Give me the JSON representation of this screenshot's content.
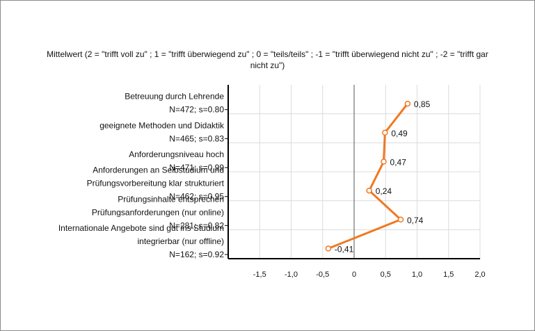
{
  "chart_data": {
    "type": "line",
    "orientation": "horizontal",
    "title_line1": "Mittelwert (2 = \"trifft voll zu\" ; 1 = \"trifft überwiegend zu\" ; 0 = \"teils/teils\" ; -1 = \"trifft überwiegend nicht zu\" ; -2 = \"trifft gar",
    "title_line2": "nicht zu\")",
    "categories": [
      {
        "lines": [
          "Betreuung durch Lehrende"
        ],
        "stats": "N=472; s=0.80"
      },
      {
        "lines": [
          "geeignete Methoden und Didaktik"
        ],
        "stats": "N=465; s=0.83"
      },
      {
        "lines": [
          "Anforderungsniveau hoch"
        ],
        "stats": "N=471; s=0.99"
      },
      {
        "lines": [
          "Anforderungen an Selbstudium und",
          "Prüfungsvorbereitung klar strukturiert"
        ],
        "stats": "N=462; s=0.95"
      },
      {
        "lines": [
          "Prüfungsinhalte entsprechen",
          "Prüfungsanforderungen (nur online)"
        ],
        "stats": "N=281; s=0.82"
      },
      {
        "lines": [
          "Internationale Angebote sind gut ins Studium",
          "integrierbar (nur offline)"
        ],
        "stats": "N=162; s=0.92"
      }
    ],
    "series": [
      {
        "values": [
          0.85,
          0.49,
          0.47,
          0.24,
          0.74,
          -0.41
        ],
        "value_labels": [
          "0,85",
          "0,49",
          "0,47",
          "0,24",
          "0,74",
          "-0,41"
        ],
        "color": "#f07820"
      }
    ],
    "xlim": [
      -2,
      2
    ],
    "x_ticks": [
      -1.5,
      -1.0,
      -0.5,
      0,
      0.5,
      1.0,
      1.5,
      2.0
    ],
    "x_tick_labels": [
      "-1,5",
      "-1,0",
      "-0,5",
      "0",
      "0,5",
      "1,0",
      "1,5",
      "2,0"
    ],
    "grid": true,
    "legend": "none"
  }
}
